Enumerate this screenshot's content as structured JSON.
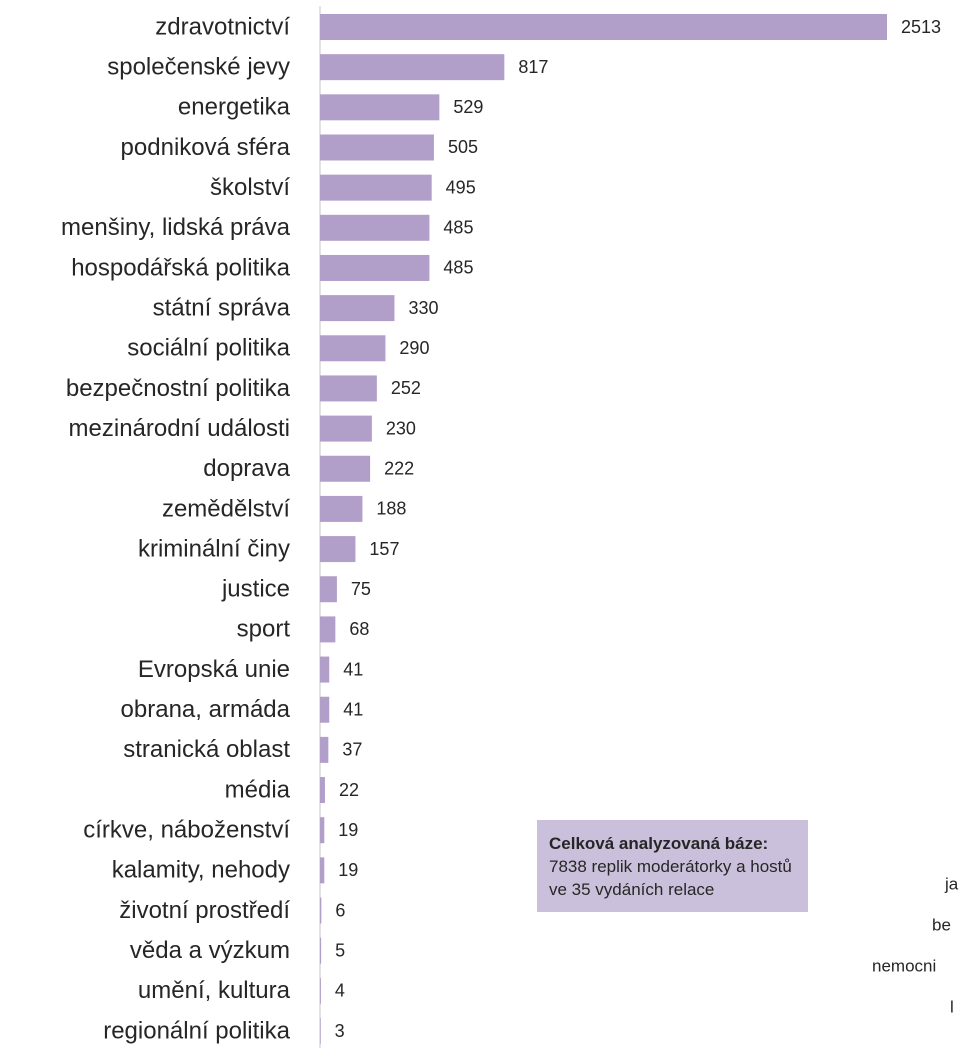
{
  "chart_data": {
    "type": "hbar",
    "categories": [
      "zdravotnictví",
      "společenské jevy",
      "energetika",
      "podniková sféra",
      "školství",
      "menšiny, lidská práva",
      "hospodářská politika",
      "státní správa",
      "sociální politika",
      "bezpečnostní politika",
      "mezinárodní události",
      "doprava",
      "zemědělství",
      "kriminální činy",
      "justice",
      "sport",
      "Evropská unie",
      "obrana, armáda",
      "stranická oblast",
      "média",
      "církve, náboženství",
      "kalamity, nehody",
      "životní prostředí",
      "věda a výzkum",
      "umění, kultura",
      "regionální politika"
    ],
    "values": [
      2513,
      817,
      529,
      505,
      495,
      485,
      485,
      330,
      290,
      252,
      230,
      222,
      188,
      157,
      75,
      68,
      41,
      41,
      37,
      22,
      19,
      19,
      6,
      5,
      4,
      3
    ],
    "color": "#b19fca",
    "annotation": {
      "bold": "Celková analyzovaná báze:",
      "text": "7838 replik moderátorky a hostů ve 35 vydáních relace"
    },
    "side_text": [
      "ja",
      "be",
      "nemocni",
      "l"
    ]
  }
}
